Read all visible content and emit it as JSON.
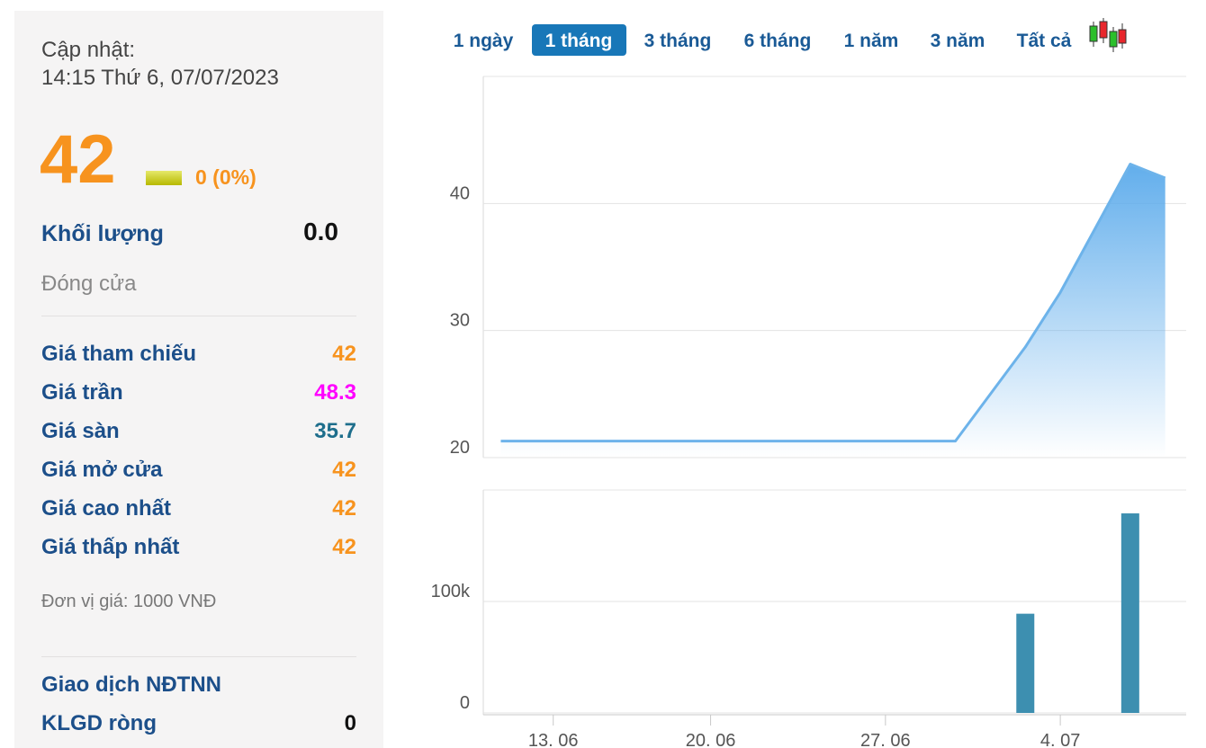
{
  "sidebar": {
    "update_label": "Cập nhật:",
    "update_time": "14:15 Thứ 6, 07/07/2023",
    "price": "42",
    "change": "0 (0%)",
    "volume_label": "Khối lượng",
    "volume": "0.0",
    "status": "Đóng cửa",
    "rows": [
      [
        "Giá tham chiếu",
        "42"
      ],
      [
        "Giá trần",
        "48.3"
      ],
      [
        "Giá sàn",
        "35.7"
      ],
      [
        "Giá mở cửa",
        "42"
      ],
      [
        "Giá cao nhất",
        "42"
      ],
      [
        "Giá thấp nhất",
        "42"
      ]
    ],
    "unit_note": "Đơn vị giá: 1000 VNĐ",
    "foreign_title": "Giao dịch NĐTNN",
    "net_label": "KLGD ròng",
    "net_value": "0"
  },
  "tabs": [
    "1 ngày",
    "1 tháng",
    "3 tháng",
    "6 tháng",
    "1 năm",
    "3 năm",
    "Tất cả"
  ],
  "active_tab": 1,
  "chart_data": [
    {
      "type": "area",
      "x": [
        -1.5,
        11.5,
        13.5,
        14.5,
        16.5,
        17.5
      ],
      "values": [
        21.3,
        21.3,
        28.7,
        33,
        43.1,
        42
      ],
      "color": "#6db3ea",
      "xlim": [
        -2,
        18.1
      ],
      "ylim": [
        20,
        50
      ],
      "yticks": [
        20,
        30,
        40
      ],
      "grid": true
    },
    {
      "type": "bar",
      "x": [
        13.5,
        16.5
      ],
      "values": [
        89000,
        179000
      ],
      "color": "#3d8fb0",
      "xlim": [
        -2,
        18.1
      ],
      "ylim": [
        0,
        200000
      ],
      "yticks": [
        0,
        {
          "value": 100000,
          "label": "100k"
        }
      ],
      "xticks": [
        {
          "value": 0,
          "label": "13. 06"
        },
        {
          "value": 4.5,
          "label": "20. 06"
        },
        {
          "value": 9.5,
          "label": "27. 06"
        },
        {
          "value": 14.5,
          "label": "4. 07"
        }
      ],
      "grid": true
    }
  ]
}
